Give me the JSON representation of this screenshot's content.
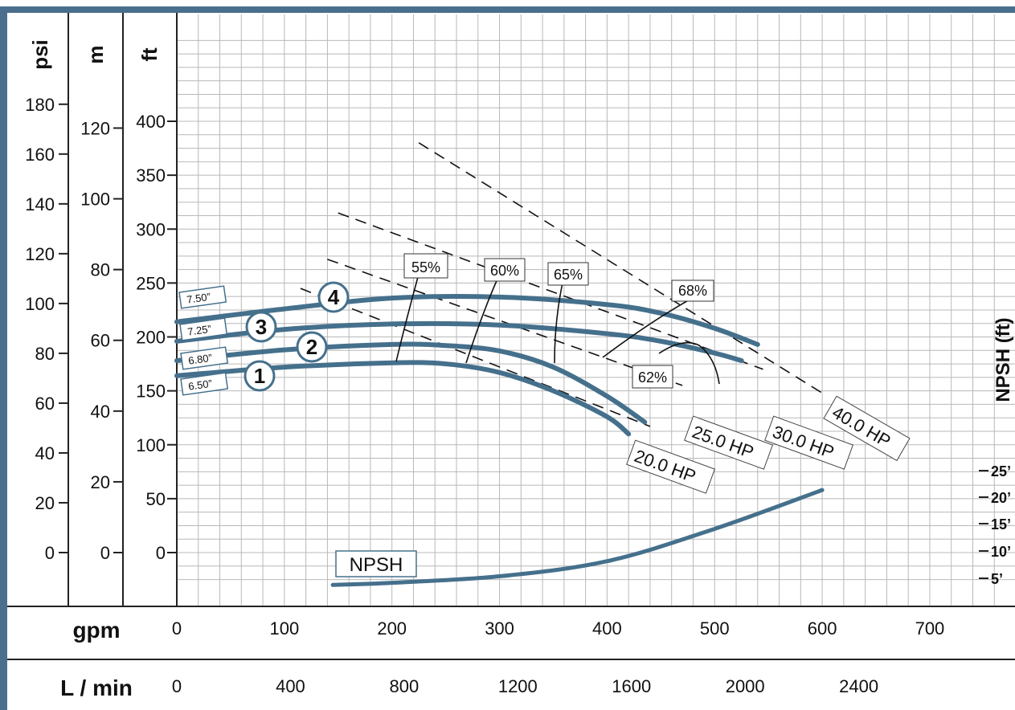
{
  "chart_data": {
    "type": "line",
    "title": "",
    "colors": {
      "curve": "#45708c",
      "frame": "#4a6f8d",
      "grid": "#b8b8b8",
      "dashed": "#111111"
    },
    "head_axes": [
      {
        "unit": "psi",
        "ticks": [
          0,
          20,
          40,
          60,
          80,
          100,
          120,
          140,
          160,
          180
        ]
      },
      {
        "unit": "m",
        "ticks": [
          0,
          20,
          40,
          60,
          80,
          100,
          120
        ]
      },
      {
        "unit": "ft",
        "ticks": [
          0,
          50,
          100,
          150,
          200,
          250,
          300,
          350,
          400
        ]
      }
    ],
    "flow_axes": [
      {
        "unit": "gpm",
        "ticks": [
          0,
          100,
          200,
          300,
          400,
          500,
          600,
          700
        ]
      },
      {
        "unit": "L / min",
        "ticks": [
          0,
          400,
          800,
          1200,
          1600,
          2000,
          2400
        ]
      }
    ],
    "xlim": [
      0,
      770
    ],
    "ylim": [
      -25,
      475
    ],
    "npsh_axis": {
      "label": "NPSH (ft)",
      "ticks": [
        "5’",
        "10’",
        "15’",
        "20’",
        "25’"
      ]
    },
    "impeller_curves": [
      {
        "number": "1",
        "diameter": "6.50”",
        "x": [
          0,
          100,
          200,
          250,
          300,
          350,
          400,
          420
        ],
        "y": [
          164,
          172,
          176,
          175,
          167,
          150,
          126,
          110
        ]
      },
      {
        "number": "2",
        "diameter": "6.80”",
        "x": [
          0,
          100,
          200,
          250,
          300,
          350,
          400,
          435
        ],
        "y": [
          178,
          188,
          193,
          192,
          187,
          172,
          145,
          121
        ]
      },
      {
        "number": "3",
        "diameter": "7.25”",
        "x": [
          0,
          100,
          200,
          300,
          400,
          450,
          500,
          525
        ],
        "y": [
          196,
          207,
          212,
          211,
          203,
          196,
          185,
          178
        ]
      },
      {
        "number": "4",
        "diameter": "7.50”",
        "x": [
          0,
          100,
          200,
          300,
          400,
          450,
          500,
          540
        ],
        "y": [
          214,
          226,
          236,
          237,
          230,
          222,
          208,
          193
        ]
      }
    ],
    "hp_lines": [
      {
        "label": "20.0 HP",
        "from": [
          115,
          245
        ],
        "to": [
          440,
          117
        ]
      },
      {
        "label": "25.0 HP",
        "from": [
          140,
          272
        ],
        "to": [
          470,
          155
        ]
      },
      {
        "label": "30.0 HP",
        "from": [
          150,
          315
        ],
        "to": [
          545,
          170
        ]
      },
      {
        "label": "40.0 HP",
        "from": [
          225,
          380
        ],
        "to": [
          600,
          148
        ]
      }
    ],
    "efficiency_labels": [
      "55%",
      "60%",
      "62%",
      "65%",
      "68%"
    ],
    "npsh_curve": {
      "label": "NPSH",
      "x": [
        145,
        200,
        300,
        400,
        500,
        600
      ],
      "y": [
        -30,
        -28,
        -22,
        -8,
        22,
        58
      ]
    }
  }
}
